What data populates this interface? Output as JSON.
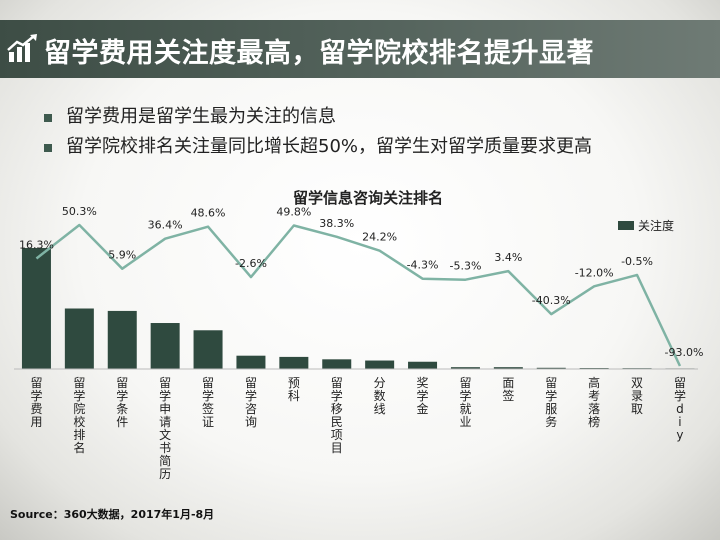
{
  "header": {
    "title": "留学费用关注度最高，留学院校排名提升显著",
    "icon": "bar-growth-icon"
  },
  "bullets": [
    "留学费用是留学生最为关注的信息",
    "留学院校排名关注量同比增长超50%，留学生对留学质量要求更高"
  ],
  "chart_data": {
    "type": "bar",
    "title": "留学信息咨询关注排名",
    "categories": [
      "留学费用",
      "留学院校排名",
      "留学条件",
      "留学申请文书简历",
      "留学签证",
      "留学咨询",
      "预科",
      "留学移民项目",
      "分数线",
      "奖学金",
      "留学就业",
      "面签",
      "留学服务",
      "高考落榜",
      "双录取",
      "留学diy"
    ],
    "series": [
      {
        "name": "关注度",
        "type": "bar",
        "values": [
          100,
          50,
          48,
          38,
          32,
          11,
          10,
          8,
          7,
          6,
          1.5,
          1.5,
          1,
          0.8,
          0.7,
          0.5
        ],
        "color": "#2f4a3f"
      },
      {
        "type": "line",
        "values": [
          16.3,
          50.3,
          5.9,
          36.4,
          48.6,
          -2.6,
          49.8,
          38.3,
          24.2,
          -4.3,
          -5.3,
          3.4,
          -40.3,
          -12.0,
          -0.5,
          -93.0
        ],
        "labels": [
          "16.3%",
          "50.3%",
          "5.9%",
          "36.4%",
          "48.6%",
          "-2.6%",
          "49.8%",
          "38.3%",
          "24.2%",
          "-4.3%",
          "-5.3%",
          "3.4%",
          "-40.3%",
          "-12.0%",
          "-0.5%",
          "-93.0%"
        ],
        "color": "#7fb3a4"
      }
    ],
    "legend": "top-right",
    "grid": false
  },
  "source": "Source：360大数据，2017年1月-8月"
}
